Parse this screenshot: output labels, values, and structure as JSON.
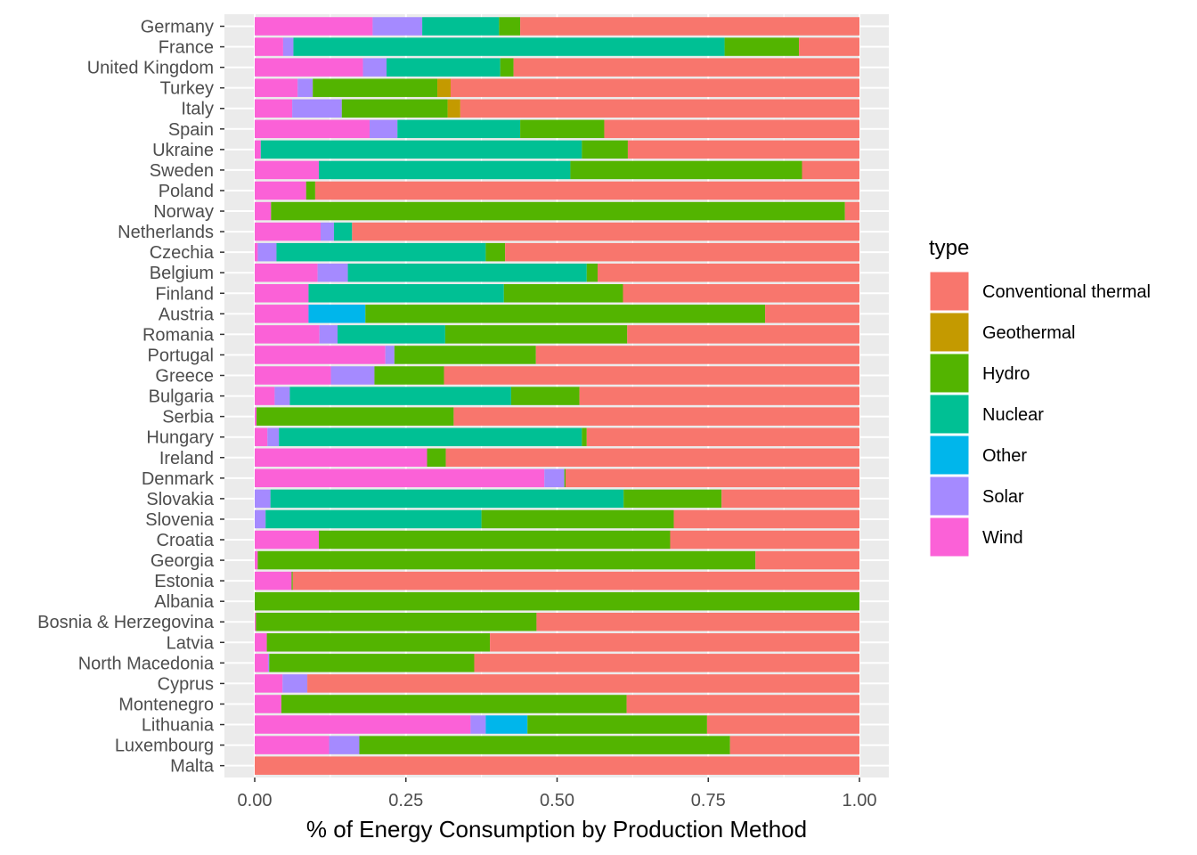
{
  "chart_data": {
    "type": "bar",
    "orientation": "horizontal",
    "stacked": "fill",
    "xlabel": "% of Energy Consumption by Production Method",
    "ylabel": "",
    "xlim": [
      0,
      1
    ],
    "x_ticks": [
      "0.00",
      "0.25",
      "0.50",
      "0.75",
      "1.00"
    ],
    "grid": true,
    "legend_position": "right",
    "legend_title": "type",
    "types": [
      "Wind",
      "Solar",
      "Other",
      "Nuclear",
      "Hydro",
      "Geothermal",
      "Conventional thermal"
    ],
    "legend_order": [
      "Conventional thermal",
      "Geothermal",
      "Hydro",
      "Nuclear",
      "Other",
      "Solar",
      "Wind"
    ],
    "colors": {
      "Conventional thermal": "#F8766D",
      "Geothermal": "#C49A00",
      "Hydro": "#53B400",
      "Nuclear": "#00C094",
      "Other": "#00B6EB",
      "Solar": "#A58AFF",
      "Wind": "#FB61D7"
    },
    "categories": [
      "Germany",
      "France",
      "United Kingdom",
      "Turkey",
      "Italy",
      "Spain",
      "Ukraine",
      "Sweden",
      "Poland",
      "Norway",
      "Netherlands",
      "Czechia",
      "Belgium",
      "Finland",
      "Austria",
      "Romania",
      "Portugal",
      "Greece",
      "Bulgaria",
      "Serbia",
      "Hungary",
      "Ireland",
      "Denmark",
      "Slovakia",
      "Slovenia",
      "Croatia",
      "Georgia",
      "Estonia",
      "Albania",
      "Bosnia & Herzegovina",
      "Latvia",
      "North Macedonia",
      "Cyprus",
      "Montenegro",
      "Lithuania",
      "Luxembourg",
      "Malta"
    ],
    "series": [
      {
        "name": "Wind",
        "values": [
          0.195,
          0.047,
          0.179,
          0.071,
          0.062,
          0.19,
          0.01,
          0.106,
          0.085,
          0.027,
          0.109,
          0.005,
          0.104,
          0.089,
          0.089,
          0.107,
          0.216,
          0.126,
          0.033,
          0.003,
          0.021,
          0.285,
          0.479,
          0.0,
          0.0,
          0.106,
          0.005,
          0.061,
          0.0,
          0.002,
          0.02,
          0.022,
          0.046,
          0.044,
          0.357,
          0.123,
          0.0
        ]
      },
      {
        "name": "Solar",
        "values": [
          0.082,
          0.017,
          0.039,
          0.025,
          0.082,
          0.046,
          0.0,
          0.0,
          0.0,
          0.0,
          0.022,
          0.031,
          0.05,
          0.0,
          0.0,
          0.03,
          0.015,
          0.072,
          0.025,
          0.0,
          0.019,
          0.0,
          0.033,
          0.026,
          0.018,
          0.0,
          0.0,
          0.0,
          0.0,
          0.0,
          0.0,
          0.002,
          0.041,
          0.0,
          0.025,
          0.05,
          0.0
        ]
      },
      {
        "name": "Other",
        "values": [
          0.0,
          0.0,
          0.0,
          0.0,
          0.0,
          0.0,
          0.0,
          0.0,
          0.0,
          0.0,
          0.0,
          0.0,
          0.0,
          0.0,
          0.094,
          0.0,
          0.0,
          0.0,
          0.0,
          0.0,
          0.0,
          0.0,
          0.0,
          0.0,
          0.0,
          0.0,
          0.0,
          0.0,
          0.0,
          0.0,
          0.0,
          0.0,
          0.0,
          0.0,
          0.069,
          0.0,
          0.0
        ]
      },
      {
        "name": "Nuclear",
        "values": [
          0.127,
          0.713,
          0.188,
          0.0,
          0.0,
          0.203,
          0.531,
          0.416,
          0.0,
          0.0,
          0.03,
          0.346,
          0.395,
          0.323,
          0.0,
          0.178,
          0.0,
          0.0,
          0.366,
          0.0,
          0.501,
          0.0,
          0.0,
          0.584,
          0.357,
          0.0,
          0.0,
          0.0,
          0.0,
          0.0,
          0.0,
          0.0,
          0.0,
          0.0,
          0.0,
          0.0,
          0.0
        ]
      },
      {
        "name": "Hydro",
        "values": [
          0.035,
          0.123,
          0.022,
          0.206,
          0.175,
          0.139,
          0.076,
          0.383,
          0.015,
          0.949,
          0.0,
          0.032,
          0.018,
          0.197,
          0.661,
          0.301,
          0.234,
          0.115,
          0.113,
          0.326,
          0.008,
          0.031,
          0.002,
          0.162,
          0.318,
          0.581,
          0.823,
          0.002,
          1.0,
          0.464,
          0.369,
          0.339,
          0.0,
          0.571,
          0.297,
          0.613,
          0.0
        ]
      },
      {
        "name": "Geothermal",
        "values": [
          0.0,
          0.0,
          0.0,
          0.022,
          0.021,
          0.0,
          0.0,
          0.0,
          0.0,
          0.0,
          0.0,
          0.0,
          0.0,
          0.0,
          0.0,
          0.0,
          0.0,
          0.0,
          0.0,
          0.0,
          0.0,
          0.0,
          0.0,
          0.0,
          0.0,
          0.0,
          0.0,
          0.0,
          0.0,
          0.0,
          0.0,
          0.0,
          0.0,
          0.0,
          0.0,
          0.0,
          0.0
        ]
      },
      {
        "name": "Conventional thermal",
        "values": [
          0.561,
          0.1,
          0.572,
          0.676,
          0.66,
          0.422,
          0.383,
          0.095,
          0.9,
          0.024,
          0.839,
          0.586,
          0.433,
          0.391,
          0.156,
          0.384,
          0.535,
          0.687,
          0.463,
          0.671,
          0.451,
          0.684,
          0.486,
          0.228,
          0.307,
          0.313,
          0.172,
          0.937,
          0.0,
          0.534,
          0.611,
          0.637,
          0.913,
          0.385,
          0.252,
          0.214,
          1.0
        ]
      }
    ]
  }
}
